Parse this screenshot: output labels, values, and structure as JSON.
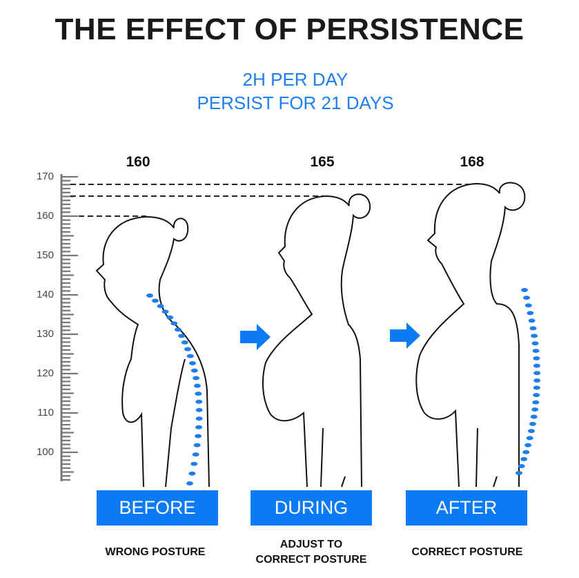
{
  "title": "THE EFFECT OF PERSISTENCE",
  "subtitle": [
    "2H PER DAY",
    "PERSIST FOR 21 DAYS"
  ],
  "ruler": {
    "labels": [
      "170",
      "160",
      "150",
      "140",
      "130",
      "120",
      "110",
      "100"
    ],
    "min": 100,
    "max": 170
  },
  "heights": [
    "160",
    "165",
    "168"
  ],
  "stages": [
    {
      "label": "BEFORE",
      "description": [
        "WRONG POSTURE"
      ]
    },
    {
      "label": "DURING",
      "description": [
        "ADJUST TO",
        "CORRECT POSTURE"
      ]
    },
    {
      "label": "AFTER",
      "description": [
        "CORRECT POSTURE"
      ]
    }
  ],
  "icons": [
    "arrow-right-icon",
    "arrow-right-icon"
  ],
  "colors": {
    "accent": "#0b7bf4",
    "subtitle": "#1d7ef0",
    "spine": "#1d7ef0"
  }
}
